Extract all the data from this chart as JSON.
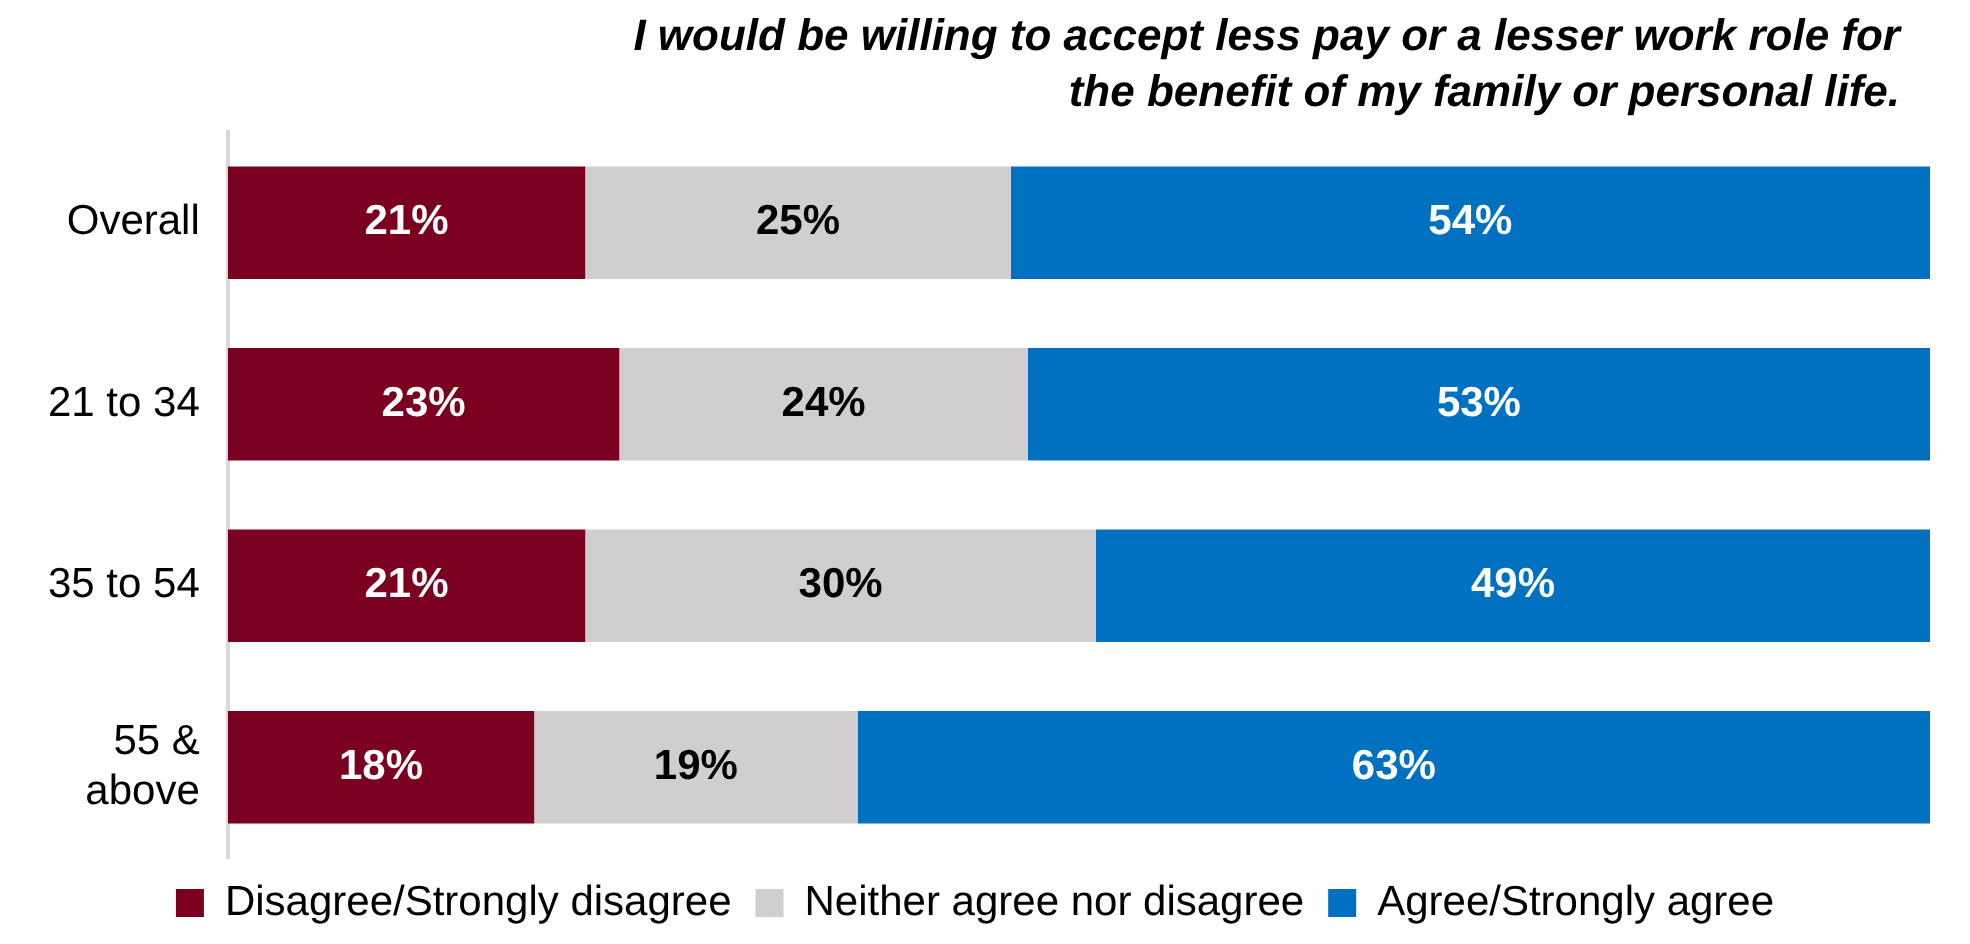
{
  "chart_data": {
    "type": "bar",
    "orientation": "horizontal",
    "stacked": true,
    "title": "I would be willing to accept less pay or a lesser work role for the benefit of my family or personal life.",
    "categories": [
      "Overall",
      "21 to 34",
      "35 to 54",
      "55 & above"
    ],
    "series": [
      {
        "name": "Disagree/Strongly disagree",
        "color": "#7b0020",
        "values": [
          21,
          23,
          21,
          18
        ],
        "value_labels": [
          "21%",
          "23%",
          "21%",
          "18%"
        ]
      },
      {
        "name": "Neither agree nor disagree",
        "color": "#d0cece",
        "values": [
          25,
          24,
          30,
          19
        ],
        "value_labels": [
          "25%",
          "24%",
          "30%",
          "19%"
        ]
      },
      {
        "name": "Agree/Strongly agree",
        "color": "#0070c0",
        "values": [
          54,
          53,
          49,
          63
        ],
        "value_labels": [
          "54%",
          "53%",
          "49%",
          "63%"
        ]
      }
    ],
    "xlim": [
      0,
      100
    ],
    "tick_labels": "y",
    "legend": "bottom"
  }
}
